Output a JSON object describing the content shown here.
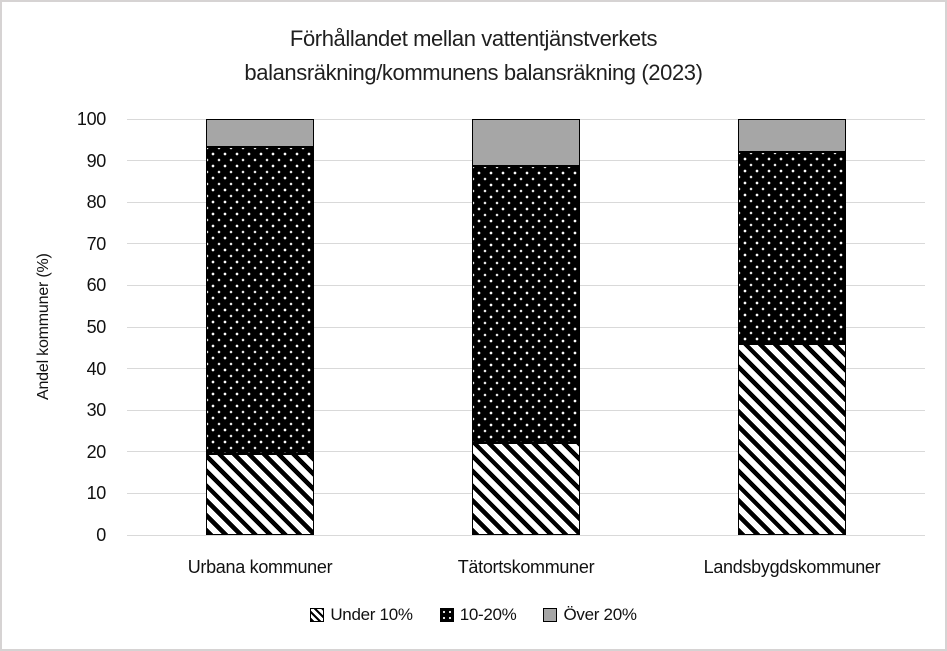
{
  "title": {
    "line1": "Förhållandet mellan vattentjänstverkets",
    "line2": "balansräkning/kommunens balansräkning (2023)"
  },
  "chart_data": {
    "type": "bar",
    "stacked": true,
    "title": "Förhållandet mellan vattentjänstverkets balansräkning/kommunens balansräkning (2023)",
    "categories": [
      "Urbana kommuner",
      "Tätortskommuner",
      "Landsbygdskommuner"
    ],
    "series": [
      {
        "name": "Under 10%",
        "pattern": "diagonal-hatch",
        "values": [
          19.4,
          22.2,
          45.9
        ]
      },
      {
        "name": "10-20%",
        "pattern": "black-dotted",
        "values": [
          73.8,
          66.4,
          46.1
        ]
      },
      {
        "name": "Över 20%",
        "pattern": "solid-gray",
        "values": [
          6.8,
          11.4,
          8.0
        ]
      }
    ],
    "xlabel": "",
    "ylabel": "Andel kommuner (%)",
    "ylim": [
      0,
      100
    ],
    "yticks": [
      0,
      10,
      20,
      30,
      40,
      50,
      60,
      70,
      80,
      90,
      100
    ],
    "grid": true,
    "legend_position": "bottom"
  },
  "colors": {
    "pattern_foreground": "#000000",
    "pattern_background": "#ffffff",
    "gray_fill": "#a6a6a6",
    "gridline": "#d9d9d9",
    "frame_border": "#d6d3d3",
    "text": "#1f1f1f"
  }
}
